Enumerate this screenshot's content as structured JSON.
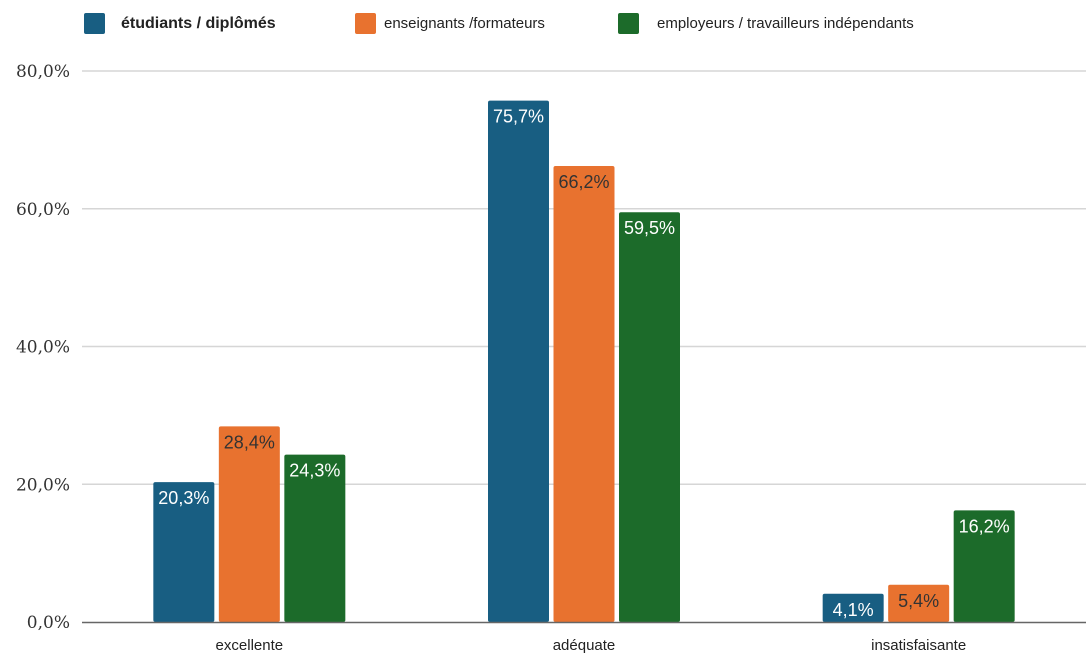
{
  "chart_data": {
    "type": "bar",
    "categories": [
      "excellente",
      "adéquate",
      "insatisfaisante"
    ],
    "series": [
      {
        "name": "étudiants / diplômés",
        "values": [
          20.3,
          75.7,
          4.1
        ],
        "labels": [
          "20,3%",
          "75,7%",
          "4,1%"
        ],
        "color": "#185e82",
        "label_color": "#ffffff"
      },
      {
        "name": "enseignants /formateurs",
        "values": [
          28.4,
          66.2,
          5.4
        ],
        "labels": [
          "28,4%",
          "66,2%",
          "5,4%"
        ],
        "color": "#e8722f",
        "label_color": "#333333"
      },
      {
        "name": "employeurs / travailleurs indépendants",
        "values": [
          24.3,
          59.5,
          16.2
        ],
        "labels": [
          "24,3%",
          "59,5%",
          "16,2%"
        ],
        "color": "#1c6b2a",
        "label_color": "#ffffff"
      }
    ],
    "yticks": [
      "0,0%",
      "20,0%",
      "40,0%",
      "60,0%",
      "80,0%"
    ],
    "ytick_values": [
      0,
      20,
      40,
      60,
      80
    ],
    "ylim": [
      0,
      80
    ],
    "grid": true,
    "legend_position": "top"
  }
}
